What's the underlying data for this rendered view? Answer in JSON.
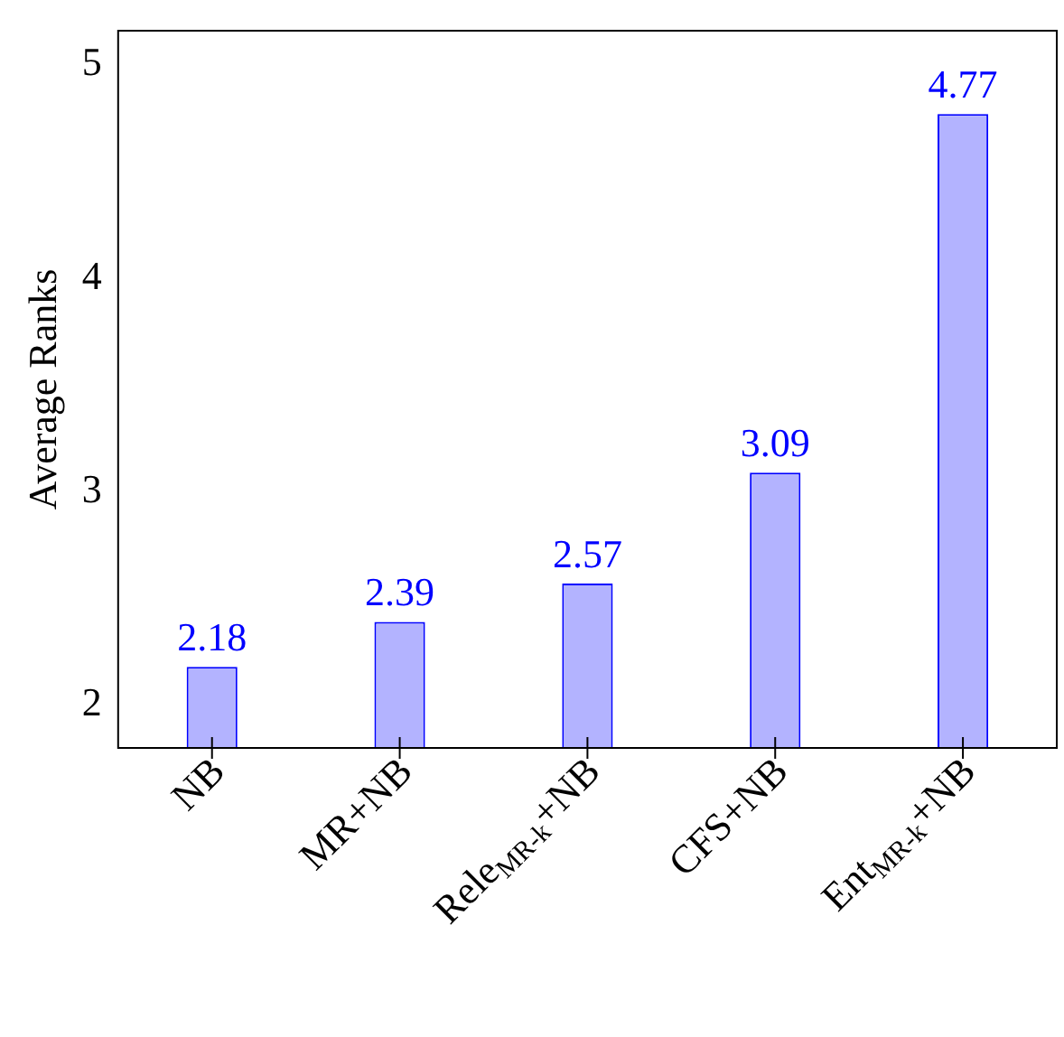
{
  "chart_data": {
    "type": "bar",
    "ylabel": "Average Ranks",
    "categories": [
      "NB",
      "MR+NB",
      "Rele$_{MR-k}$+NB",
      "CFS+NB",
      "Ent$_{MR-k}$+NB"
    ],
    "values": [
      2.18,
      2.39,
      2.57,
      3.09,
      4.77
    ],
    "color": "#b3b3ff",
    "ylim": [
      1.8,
      5.16
    ],
    "yticks": [
      2,
      3,
      4,
      5
    ],
    "grid": false,
    "legend": false,
    "data_labels": true
  }
}
